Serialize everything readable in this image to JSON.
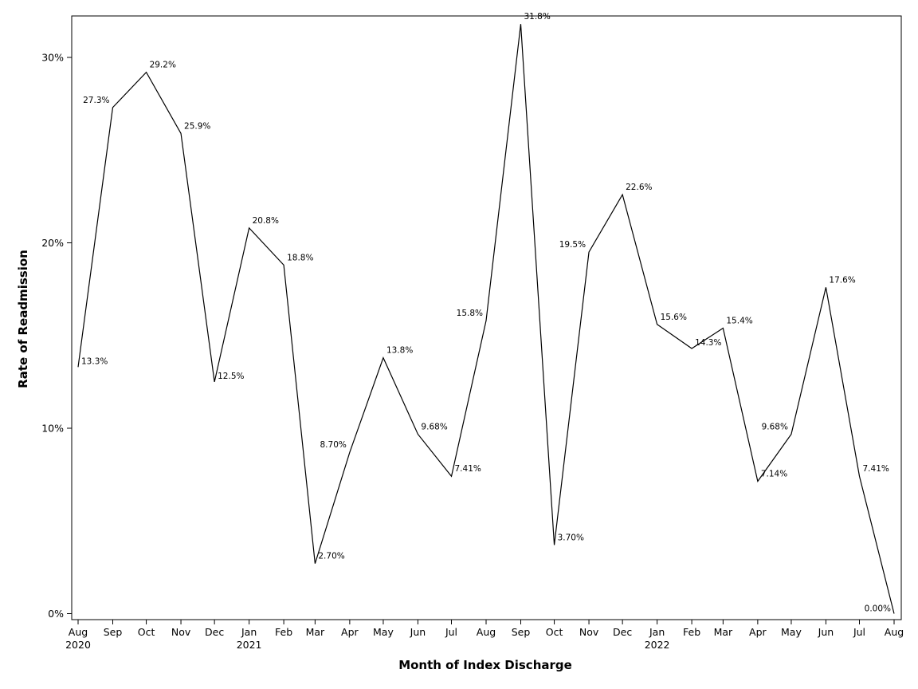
{
  "chart_data": {
    "type": "line",
    "xlabel": "Month of Index Discharge",
    "ylabel": "Rate of Readmission",
    "ylim": [
      0,
      32.2
    ],
    "yticks": [
      0,
      10,
      20,
      30
    ],
    "ytick_labels": [
      "0%",
      "10%",
      "20%",
      "30%"
    ],
    "grid": false,
    "legend": "none",
    "categories": [
      "Aug",
      "Sep",
      "Oct",
      "Nov",
      "Dec",
      "Jan",
      "Feb",
      "Mar",
      "Apr",
      "May",
      "Jun",
      "Jul",
      "Aug",
      "Sep",
      "Oct",
      "Nov",
      "Dec",
      "Jan",
      "Feb",
      "Mar",
      "Apr",
      "May",
      "Jun",
      "Jul",
      "Aug"
    ],
    "category_years": [
      "2020",
      "",
      "",
      "",
      "",
      "2021",
      "",
      "",
      "",
      "",
      "",
      "",
      "",
      "",
      "",
      "",
      "",
      "2022",
      "",
      "",
      "",
      "",
      "",
      "",
      ""
    ],
    "x_days": [
      0,
      31,
      61,
      92,
      122,
      153,
      184,
      212,
      243,
      273,
      304,
      334,
      365,
      396,
      426,
      457,
      487,
      518,
      549,
      577,
      608,
      638,
      669,
      699,
      730
    ],
    "series": [
      {
        "values": [
          13.3,
          27.3,
          29.2,
          25.9,
          12.5,
          20.8,
          18.8,
          2.7,
          8.7,
          13.8,
          9.68,
          7.41,
          15.8,
          31.8,
          3.7,
          19.5,
          22.6,
          15.6,
          14.3,
          15.4,
          7.14,
          9.68,
          17.6,
          7.41,
          0.0
        ],
        "labels": [
          "13.3%",
          "27.3%",
          "29.2%",
          "25.9%",
          "12.5%",
          "20.8%",
          "18.8%",
          "2.70%",
          "8.70%",
          "13.8%",
          "9.68%",
          "7.41%",
          "15.8%",
          "31.8%",
          "3.70%",
          "19.5%",
          "22.6%",
          "15.6%",
          "14.3%",
          "15.4%",
          "7.14%",
          "9.68%",
          "17.6%",
          "7.41%",
          "0.00%"
        ],
        "color": "#000000"
      }
    ]
  }
}
